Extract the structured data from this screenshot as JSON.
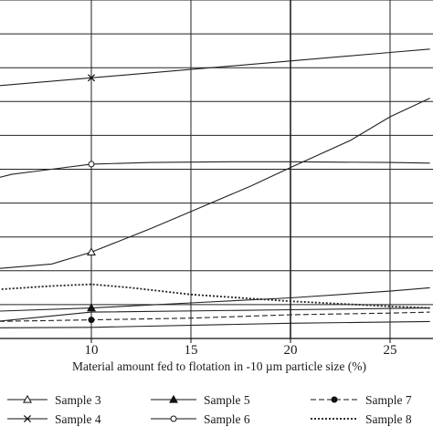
{
  "chart_data": {
    "type": "line",
    "xlabel": "Material amount fed to flotation in -10 µm particle size  (%)",
    "ylabel": "",
    "xlim": [
      0,
      27
    ],
    "ylim": [
      0,
      10
    ],
    "x_ticks": [
      "10",
      "15",
      "20",
      "25"
    ],
    "grid": true,
    "legend_position": "bottom",
    "series": [
      {
        "name": "Sample 3",
        "marker": "open-triangle",
        "dash": "solid",
        "points": [
          [
            0,
            2.1
          ],
          [
            2,
            2.05
          ],
          [
            5,
            2.05
          ],
          [
            8,
            2.2
          ],
          [
            10,
            2.55
          ],
          [
            13,
            3.25
          ],
          [
            15,
            3.75
          ],
          [
            18,
            4.5
          ],
          [
            20,
            5.05
          ],
          [
            23,
            5.85
          ],
          [
            25,
            6.55
          ],
          [
            27,
            7.1
          ]
        ],
        "marker_at": [
          10
        ]
      },
      {
        "name": "Sample 4",
        "marker": "x",
        "dash": "solid",
        "points": [
          [
            0,
            7.25
          ],
          [
            5,
            7.45
          ],
          [
            10,
            7.7
          ],
          [
            15,
            7.95
          ],
          [
            20,
            8.2
          ],
          [
            25,
            8.45
          ],
          [
            27,
            8.55
          ]
        ],
        "marker_at": [
          10
        ]
      },
      {
        "name": "Sample 5",
        "marker": "filled-triangle",
        "dash": "solid",
        "points": [
          [
            0,
            0.75
          ],
          [
            5,
            0.8
          ],
          [
            10,
            0.9
          ],
          [
            15,
            1.05
          ],
          [
            20,
            1.2
          ],
          [
            25,
            1.4
          ],
          [
            27,
            1.5
          ]
        ],
        "marker_at": [
          10
        ]
      },
      {
        "name": "Sample 6",
        "marker": "open-circle",
        "dash": "solid",
        "points": [
          [
            0,
            3.0
          ],
          [
            1,
            3.5
          ],
          [
            2,
            4.05
          ],
          [
            4,
            4.55
          ],
          [
            6,
            4.85
          ],
          [
            8,
            5.0
          ],
          [
            10,
            5.15
          ],
          [
            13,
            5.2
          ],
          [
            17,
            5.22
          ],
          [
            20,
            5.22
          ],
          [
            25,
            5.2
          ],
          [
            27,
            5.18
          ]
        ],
        "marker_at": [
          10
        ]
      },
      {
        "name": "Sample 7",
        "marker": "filled-circle",
        "dash": "dash",
        "points": [
          [
            0,
            0.45
          ],
          [
            5,
            0.5
          ],
          [
            10,
            0.55
          ],
          [
            15,
            0.6
          ],
          [
            20,
            0.7
          ],
          [
            25,
            0.75
          ],
          [
            27,
            0.78
          ]
        ],
        "marker_at": [
          10
        ]
      },
      {
        "name": "Sample 8",
        "marker": "none",
        "dash": "dot",
        "points": [
          [
            0,
            1.25
          ],
          [
            4,
            1.4
          ],
          [
            8,
            1.55
          ],
          [
            10,
            1.6
          ],
          [
            12,
            1.5
          ],
          [
            15,
            1.3
          ],
          [
            20,
            1.1
          ],
          [
            25,
            0.95
          ],
          [
            27,
            0.9
          ]
        ],
        "marker_at": []
      },
      {
        "name": "",
        "marker": "none",
        "dash": "solid",
        "points": [
          [
            0,
            0.3
          ],
          [
            10,
            0.33
          ],
          [
            20,
            0.45
          ],
          [
            27,
            0.5
          ]
        ],
        "marker_at": []
      },
      {
        "name": "",
        "marker": "none",
        "dash": "solid",
        "points": [
          [
            0,
            0.2
          ],
          [
            10,
            0.78
          ],
          [
            20,
            0.85
          ],
          [
            27,
            0.9
          ]
        ],
        "marker_at": []
      }
    ],
    "legend": [
      {
        "name": "Sample 3",
        "marker": "open-triangle",
        "dash": "solid"
      },
      {
        "name": "Sample 4",
        "marker": "x",
        "dash": "solid"
      },
      {
        "name": "Sample 5",
        "marker": "filled-triangle",
        "dash": "solid"
      },
      {
        "name": "Sample 6",
        "marker": "open-circle",
        "dash": "solid"
      },
      {
        "name": "Sample 7",
        "marker": "filled-circle",
        "dash": "dash"
      },
      {
        "name": "Sample 8",
        "marker": "none",
        "dash": "dot"
      }
    ]
  }
}
